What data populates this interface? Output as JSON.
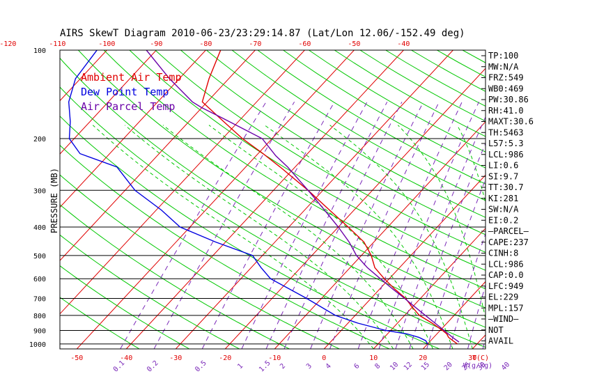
{
  "chart_data": {
    "type": "line",
    "title": "AIRS SkewT Diagram 2010-06-23/23:29:14.87 (Lat/Lon 12.06/-152.49 deg)",
    "ylabel": "PRESSURE (MB)",
    "xlabel": "T(C)",
    "mixing_ratio_label": "W(g/kg)",
    "y_scale": "log",
    "ylim": [
      1040,
      100
    ],
    "xlim_at_surface": [
      -53,
      24
    ],
    "top_temperature_ticks": [
      "-120",
      "-110",
      "-100",
      "-90",
      "-80",
      "-70",
      "-60",
      "-50",
      "-40"
    ],
    "bottom_temperature_ticks": [
      "-50",
      "-40",
      "-30",
      "-20",
      "-10",
      "0",
      "10",
      "20",
      "30"
    ],
    "mixing_ratio_ticks": [
      "0.1",
      "0.2",
      "0.5",
      "1",
      "1.5",
      "2",
      "3",
      "4",
      "6",
      "8",
      "10",
      "12",
      "15",
      "20",
      "25",
      "30",
      "40"
    ],
    "pressure_ticks": [
      "100",
      "200",
      "300",
      "400",
      "500",
      "600",
      "700",
      "800",
      "900",
      "1000"
    ],
    "legend": [
      {
        "label": "Ambient Air Temp",
        "color": "#e00000"
      },
      {
        "label": "Dew Point Temp",
        "color": "#0000e0"
      },
      {
        "label": "Air Parcel Temp",
        "color": "#6a00a8"
      }
    ],
    "series": [
      {
        "name": "Ambient Air Temp",
        "color": "#e00000",
        "points": [
          [
            1000,
            26
          ],
          [
            975,
            24.5
          ],
          [
            950,
            23
          ],
          [
            925,
            22
          ],
          [
            900,
            20.5
          ],
          [
            850,
            17
          ],
          [
            800,
            13
          ],
          [
            750,
            10
          ],
          [
            700,
            7
          ],
          [
            650,
            3
          ],
          [
            600,
            -1
          ],
          [
            550,
            -5
          ],
          [
            500,
            -8
          ],
          [
            450,
            -12
          ],
          [
            400,
            -18
          ],
          [
            350,
            -25
          ],
          [
            300,
            -33
          ],
          [
            250,
            -43
          ],
          [
            225,
            -49
          ],
          [
            200,
            -56
          ],
          [
            175,
            -63
          ],
          [
            150,
            -71
          ],
          [
            125,
            -74
          ],
          [
            100,
            -77
          ]
        ]
      },
      {
        "name": "Dew Point Temp",
        "color": "#0000e0",
        "points": [
          [
            1000,
            20
          ],
          [
            975,
            19
          ],
          [
            950,
            17
          ],
          [
            925,
            14
          ],
          [
            900,
            9
          ],
          [
            850,
            2
          ],
          [
            800,
            -4
          ],
          [
            700,
            -13
          ],
          [
            600,
            -24
          ],
          [
            550,
            -28
          ],
          [
            500,
            -32
          ],
          [
            450,
            -42
          ],
          [
            400,
            -52
          ],
          [
            350,
            -59
          ],
          [
            300,
            -68
          ],
          [
            250,
            -76
          ],
          [
            225,
            -86
          ],
          [
            200,
            -91
          ],
          [
            175,
            -94
          ],
          [
            150,
            -98
          ],
          [
            125,
            -101
          ],
          [
            100,
            -102
          ]
        ]
      },
      {
        "name": "Air Parcel Temp",
        "color": "#6a00a8",
        "points": [
          [
            986,
            26
          ],
          [
            950,
            23.8
          ],
          [
            900,
            20.8
          ],
          [
            850,
            17.6
          ],
          [
            800,
            14.2
          ],
          [
            750,
            10.6
          ],
          [
            700,
            6.8
          ],
          [
            650,
            2.6
          ],
          [
            600,
            -1.8
          ],
          [
            550,
            -6.5
          ],
          [
            500,
            -11
          ],
          [
            450,
            -15
          ],
          [
            400,
            -20
          ],
          [
            350,
            -26
          ],
          [
            300,
            -33
          ],
          [
            250,
            -41.5
          ],
          [
            229,
            -46
          ],
          [
            200,
            -52
          ],
          [
            170,
            -64
          ],
          [
            157,
            -70
          ],
          [
            150,
            -73
          ],
          [
            125,
            -82
          ],
          [
            100,
            -92
          ]
        ]
      }
    ],
    "indices": [
      "TP:100",
      "MW:N/A",
      "FRZ:549",
      "WB0:469",
      "PW:30.86",
      "RH:41.0",
      "MAXT:30.6",
      "TH:5463",
      "L57:5.3",
      "LCL:986",
      "LI:0.6",
      "SI:9.7",
      "TT:30.7",
      "KI:281",
      "SW:N/A",
      "EI:0.2",
      "—PARCEL—",
      "CAPE:237",
      "CINH:8",
      "LCL:986",
      "CAP:0.0",
      "LFC:949",
      "EL:229",
      "MPL:157",
      "—WIND—",
      "NOT",
      "AVAIL"
    ],
    "grid": true
  },
  "colors": {
    "isotherm": "#e00000",
    "dry_adiabat": "#00c800",
    "moist_adiabat": "#00c800",
    "mixing_ratio": "#7a28b8",
    "isobar": "#000000",
    "temperature_tick": "#e00000",
    "mixing_ratio_tick": "#7a28b8",
    "frame_text": "#000000"
  }
}
